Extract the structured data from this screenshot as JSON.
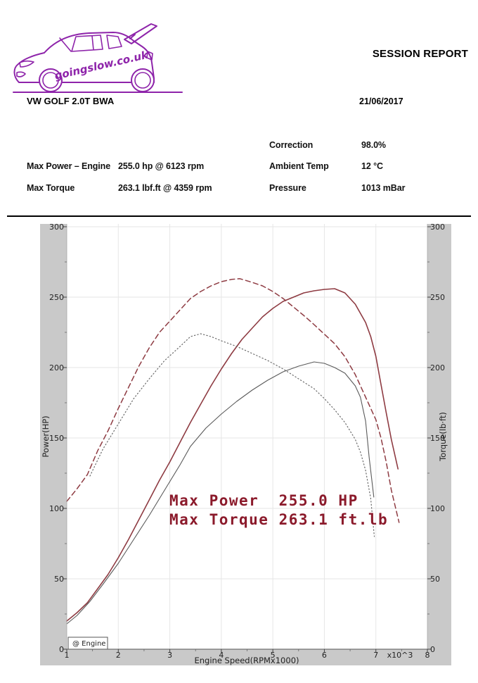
{
  "header": {
    "logo_text": "goingslow.co.uk",
    "report_title": "SESSION REPORT",
    "vehicle": "VW GOLF 2.0T BWA",
    "date": "21/06/2017",
    "stats_left": [
      {
        "label": "Max Power – Engine",
        "value": "255.0 hp @ 6123 rpm"
      },
      {
        "label": "Max Torque",
        "value": "263.1 lbf.ft @ 4359 rpm"
      }
    ],
    "stats_right": [
      {
        "label": "Correction",
        "value": "98.0%"
      },
      {
        "label": "Ambient Temp",
        "value": "12 °C"
      },
      {
        "label": "Pressure",
        "value": "1013 mBar"
      }
    ]
  },
  "colors": {
    "accent_purple": "#8e24aa",
    "ground_purple": "#7e22a0",
    "annotation_red": "#8b1a2b",
    "chart_margin_gray": "#c9c9c9",
    "grid_gray": "#e6e6e6",
    "curve_red": "#8e3b42",
    "curve_gray": "#5a5a5a"
  },
  "chart_data": {
    "type": "line",
    "xlabel": "Engine Speed(RPMx1000)",
    "x_unit_note": "x10^3",
    "ylabel_left": "Power(HP)",
    "ylabel_right": "Torque(lb·ft)",
    "xlim": [
      1,
      8
    ],
    "ylim": [
      0,
      300
    ],
    "x_ticks": [
      1,
      2,
      3,
      4,
      5,
      6,
      7,
      8
    ],
    "y_ticks": [
      0,
      50,
      100,
      150,
      200,
      250,
      300
    ],
    "grid": true,
    "legend": "@ Engine",
    "legend_position": "bottom-left",
    "annotation_lines": [
      "Max Power  255.0 HP",
      "Max Torque 263.1 ft.lb"
    ],
    "max_power_hp": 255.0,
    "max_power_rpm": 6123,
    "max_torque_lbft": 263.1,
    "max_torque_rpm": 4359,
    "series": [
      {
        "name": "power-current-run",
        "axis": "left",
        "style": "solid",
        "color": "#8e3b42",
        "width": 1.6,
        "dash": "",
        "points": [
          [
            1.0,
            20
          ],
          [
            1.2,
            26
          ],
          [
            1.4,
            33
          ],
          [
            1.6,
            43
          ],
          [
            1.8,
            53
          ],
          [
            2.0,
            65
          ],
          [
            2.2,
            78
          ],
          [
            2.4,
            92
          ],
          [
            2.6,
            106
          ],
          [
            2.8,
            120
          ],
          [
            3.0,
            133
          ],
          [
            3.2,
            147
          ],
          [
            3.4,
            161
          ],
          [
            3.6,
            174
          ],
          [
            3.8,
            187
          ],
          [
            4.0,
            199
          ],
          [
            4.2,
            210
          ],
          [
            4.4,
            220
          ],
          [
            4.6,
            228
          ],
          [
            4.8,
            236
          ],
          [
            5.0,
            242
          ],
          [
            5.2,
            247
          ],
          [
            5.4,
            250
          ],
          [
            5.6,
            253
          ],
          [
            5.8,
            254.5
          ],
          [
            6.0,
            255.5
          ],
          [
            6.2,
            256
          ],
          [
            6.4,
            253
          ],
          [
            6.6,
            245
          ],
          [
            6.8,
            232
          ],
          [
            6.9,
            222
          ],
          [
            7.0,
            208
          ],
          [
            7.1,
            188
          ],
          [
            7.2,
            168
          ],
          [
            7.3,
            149
          ],
          [
            7.43,
            128
          ]
        ]
      },
      {
        "name": "torque-current-run",
        "axis": "right",
        "style": "dashed",
        "color": "#8e3b42",
        "width": 1.5,
        "dash": "7 4.5",
        "points": [
          [
            1.0,
            105
          ],
          [
            1.2,
            114
          ],
          [
            1.4,
            124
          ],
          [
            1.6,
            141
          ],
          [
            1.8,
            155
          ],
          [
            2.0,
            171
          ],
          [
            2.2,
            186
          ],
          [
            2.4,
            201
          ],
          [
            2.6,
            214
          ],
          [
            2.8,
            225
          ],
          [
            3.0,
            233
          ],
          [
            3.2,
            241
          ],
          [
            3.4,
            249
          ],
          [
            3.6,
            254
          ],
          [
            3.8,
            258
          ],
          [
            4.0,
            261
          ],
          [
            4.2,
            262.6
          ],
          [
            4.36,
            263.1
          ],
          [
            4.6,
            260.5
          ],
          [
            4.8,
            258
          ],
          [
            5.0,
            254
          ],
          [
            5.2,
            249
          ],
          [
            5.4,
            243
          ],
          [
            5.6,
            237
          ],
          [
            5.8,
            230.5
          ],
          [
            6.0,
            223.7
          ],
          [
            6.2,
            216.9
          ],
          [
            6.4,
            207.7
          ],
          [
            6.6,
            195
          ],
          [
            6.8,
            179
          ],
          [
            7.0,
            163
          ],
          [
            7.1,
            150
          ],
          [
            7.2,
            133
          ],
          [
            7.3,
            113
          ],
          [
            7.45,
            90
          ]
        ]
      },
      {
        "name": "power-previous-run",
        "axis": "left",
        "style": "solid",
        "color": "#5a5a5a",
        "width": 1.1,
        "dash": "",
        "points": [
          [
            1.0,
            18
          ],
          [
            1.2,
            24
          ],
          [
            1.45,
            34
          ],
          [
            1.7,
            46
          ],
          [
            2.0,
            61
          ],
          [
            2.3,
            78
          ],
          [
            2.6,
            95
          ],
          [
            2.9,
            113
          ],
          [
            3.2,
            131
          ],
          [
            3.4,
            144
          ],
          [
            3.7,
            157
          ],
          [
            4.0,
            167
          ],
          [
            4.3,
            176
          ],
          [
            4.6,
            184
          ],
          [
            4.9,
            191
          ],
          [
            5.2,
            197
          ],
          [
            5.5,
            201
          ],
          [
            5.8,
            204
          ],
          [
            6.0,
            203
          ],
          [
            6.2,
            200
          ],
          [
            6.4,
            196
          ],
          [
            6.6,
            187
          ],
          [
            6.7,
            179
          ],
          [
            6.8,
            162
          ],
          [
            6.87,
            136
          ],
          [
            6.96,
            108
          ]
        ]
      },
      {
        "name": "torque-previous-run",
        "axis": "right",
        "style": "dotted",
        "color": "#6a6a6a",
        "width": 1.2,
        "dash": "1.3 3.2",
        "points": [
          [
            1.45,
            123
          ],
          [
            1.7,
            142
          ],
          [
            2.0,
            160
          ],
          [
            2.3,
            178
          ],
          [
            2.6,
            192
          ],
          [
            2.9,
            205
          ],
          [
            3.2,
            215
          ],
          [
            3.4,
            222
          ],
          [
            3.6,
            224
          ],
          [
            3.8,
            222
          ],
          [
            4.0,
            219
          ],
          [
            4.3,
            215
          ],
          [
            4.6,
            210
          ],
          [
            4.9,
            205
          ],
          [
            5.2,
            199
          ],
          [
            5.5,
            192
          ],
          [
            5.8,
            185
          ],
          [
            6.0,
            178
          ],
          [
            6.2,
            170
          ],
          [
            6.4,
            161
          ],
          [
            6.6,
            149
          ],
          [
            6.7,
            140
          ],
          [
            6.8,
            127
          ],
          [
            6.9,
            107
          ],
          [
            6.97,
            80
          ]
        ]
      }
    ]
  }
}
